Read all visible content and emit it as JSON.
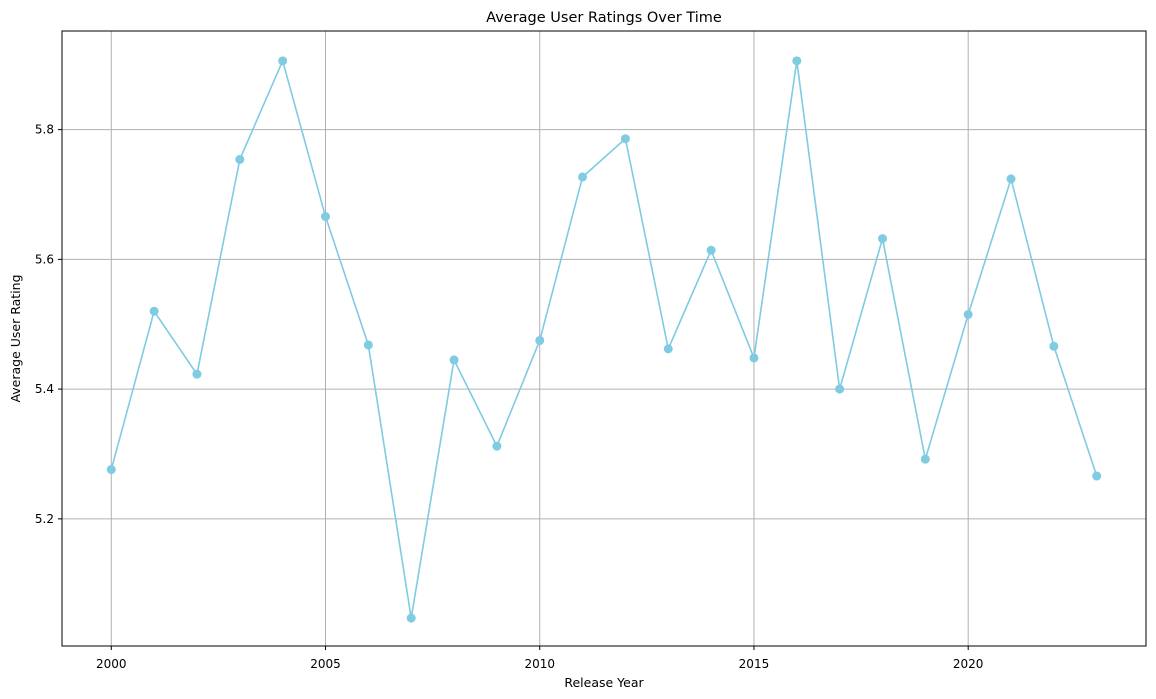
{
  "chart_data": {
    "type": "line",
    "title": "Average User Ratings Over Time",
    "xlabel": "Release Year",
    "ylabel": "Average User Rating",
    "x": [
      2000,
      2001,
      2002,
      2003,
      2004,
      2005,
      2006,
      2007,
      2008,
      2009,
      2010,
      2011,
      2012,
      2013,
      2014,
      2015,
      2016,
      2017,
      2018,
      2019,
      2020,
      2021,
      2022,
      2023
    ],
    "series": [
      {
        "values": [
          5.276,
          5.52,
          5.423,
          5.754,
          5.906,
          5.666,
          5.468,
          5.047,
          5.445,
          5.312,
          5.475,
          5.727,
          5.786,
          5.462,
          5.614,
          5.448,
          5.906,
          5.4,
          5.632,
          5.292,
          5.515,
          5.724,
          5.466,
          5.266
        ],
        "color": "#7ecbe2"
      }
    ],
    "xlim": [
      1998.85,
      2024.15
    ],
    "ylim": [
      5.004,
      5.952
    ],
    "xticks": [
      2000,
      2005,
      2010,
      2015,
      2020
    ],
    "xtick_labels": [
      "2000",
      "2005",
      "2010",
      "2015",
      "2020"
    ],
    "yticks": [
      5.2,
      5.4,
      5.6,
      5.8
    ],
    "ytick_labels": [
      "5.2",
      "5.4",
      "5.6",
      "5.8"
    ],
    "grid": true,
    "marker": "circle"
  }
}
